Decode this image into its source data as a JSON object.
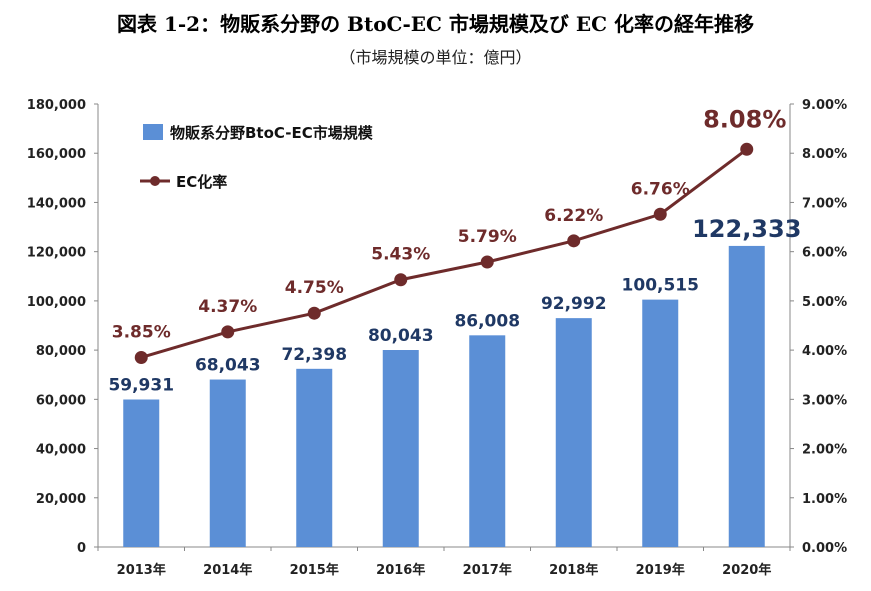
{
  "title": "図表 1-2：物販系分野の BtoC-EC 市場規模及び EC 化率の経年推移",
  "subtitle": "（市場規模の単位：億円）",
  "chart_data": {
    "type": "bar",
    "categories": [
      "2013年",
      "2014年",
      "2015年",
      "2016年",
      "2017年",
      "2018年",
      "2019年",
      "2020年"
    ],
    "series": [
      {
        "name": "物販系分野BtoC-EC市場規模",
        "type": "bar",
        "axis": "left",
        "color": "#5b8fd6",
        "values": [
          59931,
          68043,
          72398,
          80043,
          86008,
          92992,
          100515,
          122333
        ],
        "labels": [
          "59,931",
          "68,043",
          "72,398",
          "80,043",
          "86,008",
          "92,992",
          "100,515",
          "122,333"
        ]
      },
      {
        "name": "EC化率",
        "type": "line",
        "axis": "right",
        "color": "#6e2b2b",
        "values": [
          3.85,
          4.37,
          4.75,
          5.43,
          5.79,
          6.22,
          6.76,
          8.08
        ],
        "labels": [
          "3.85%",
          "4.37%",
          "4.75%",
          "5.43%",
          "5.79%",
          "6.22%",
          "6.76%",
          "8.08%"
        ]
      }
    ],
    "y_left": {
      "min": 0,
      "max": 180000,
      "step": 20000,
      "tick_labels": [
        "0",
        "20,000",
        "40,000",
        "60,000",
        "80,000",
        "100,000",
        "120,000",
        "140,000",
        "160,000",
        "180,000"
      ]
    },
    "y_right": {
      "min": 0,
      "max": 9,
      "step": 1,
      "tick_labels": [
        "0.00%",
        "1.00%",
        "2.00%",
        "3.00%",
        "4.00%",
        "5.00%",
        "6.00%",
        "7.00%",
        "8.00%",
        "9.00%"
      ]
    },
    "grid": false,
    "legend": "top-left"
  }
}
